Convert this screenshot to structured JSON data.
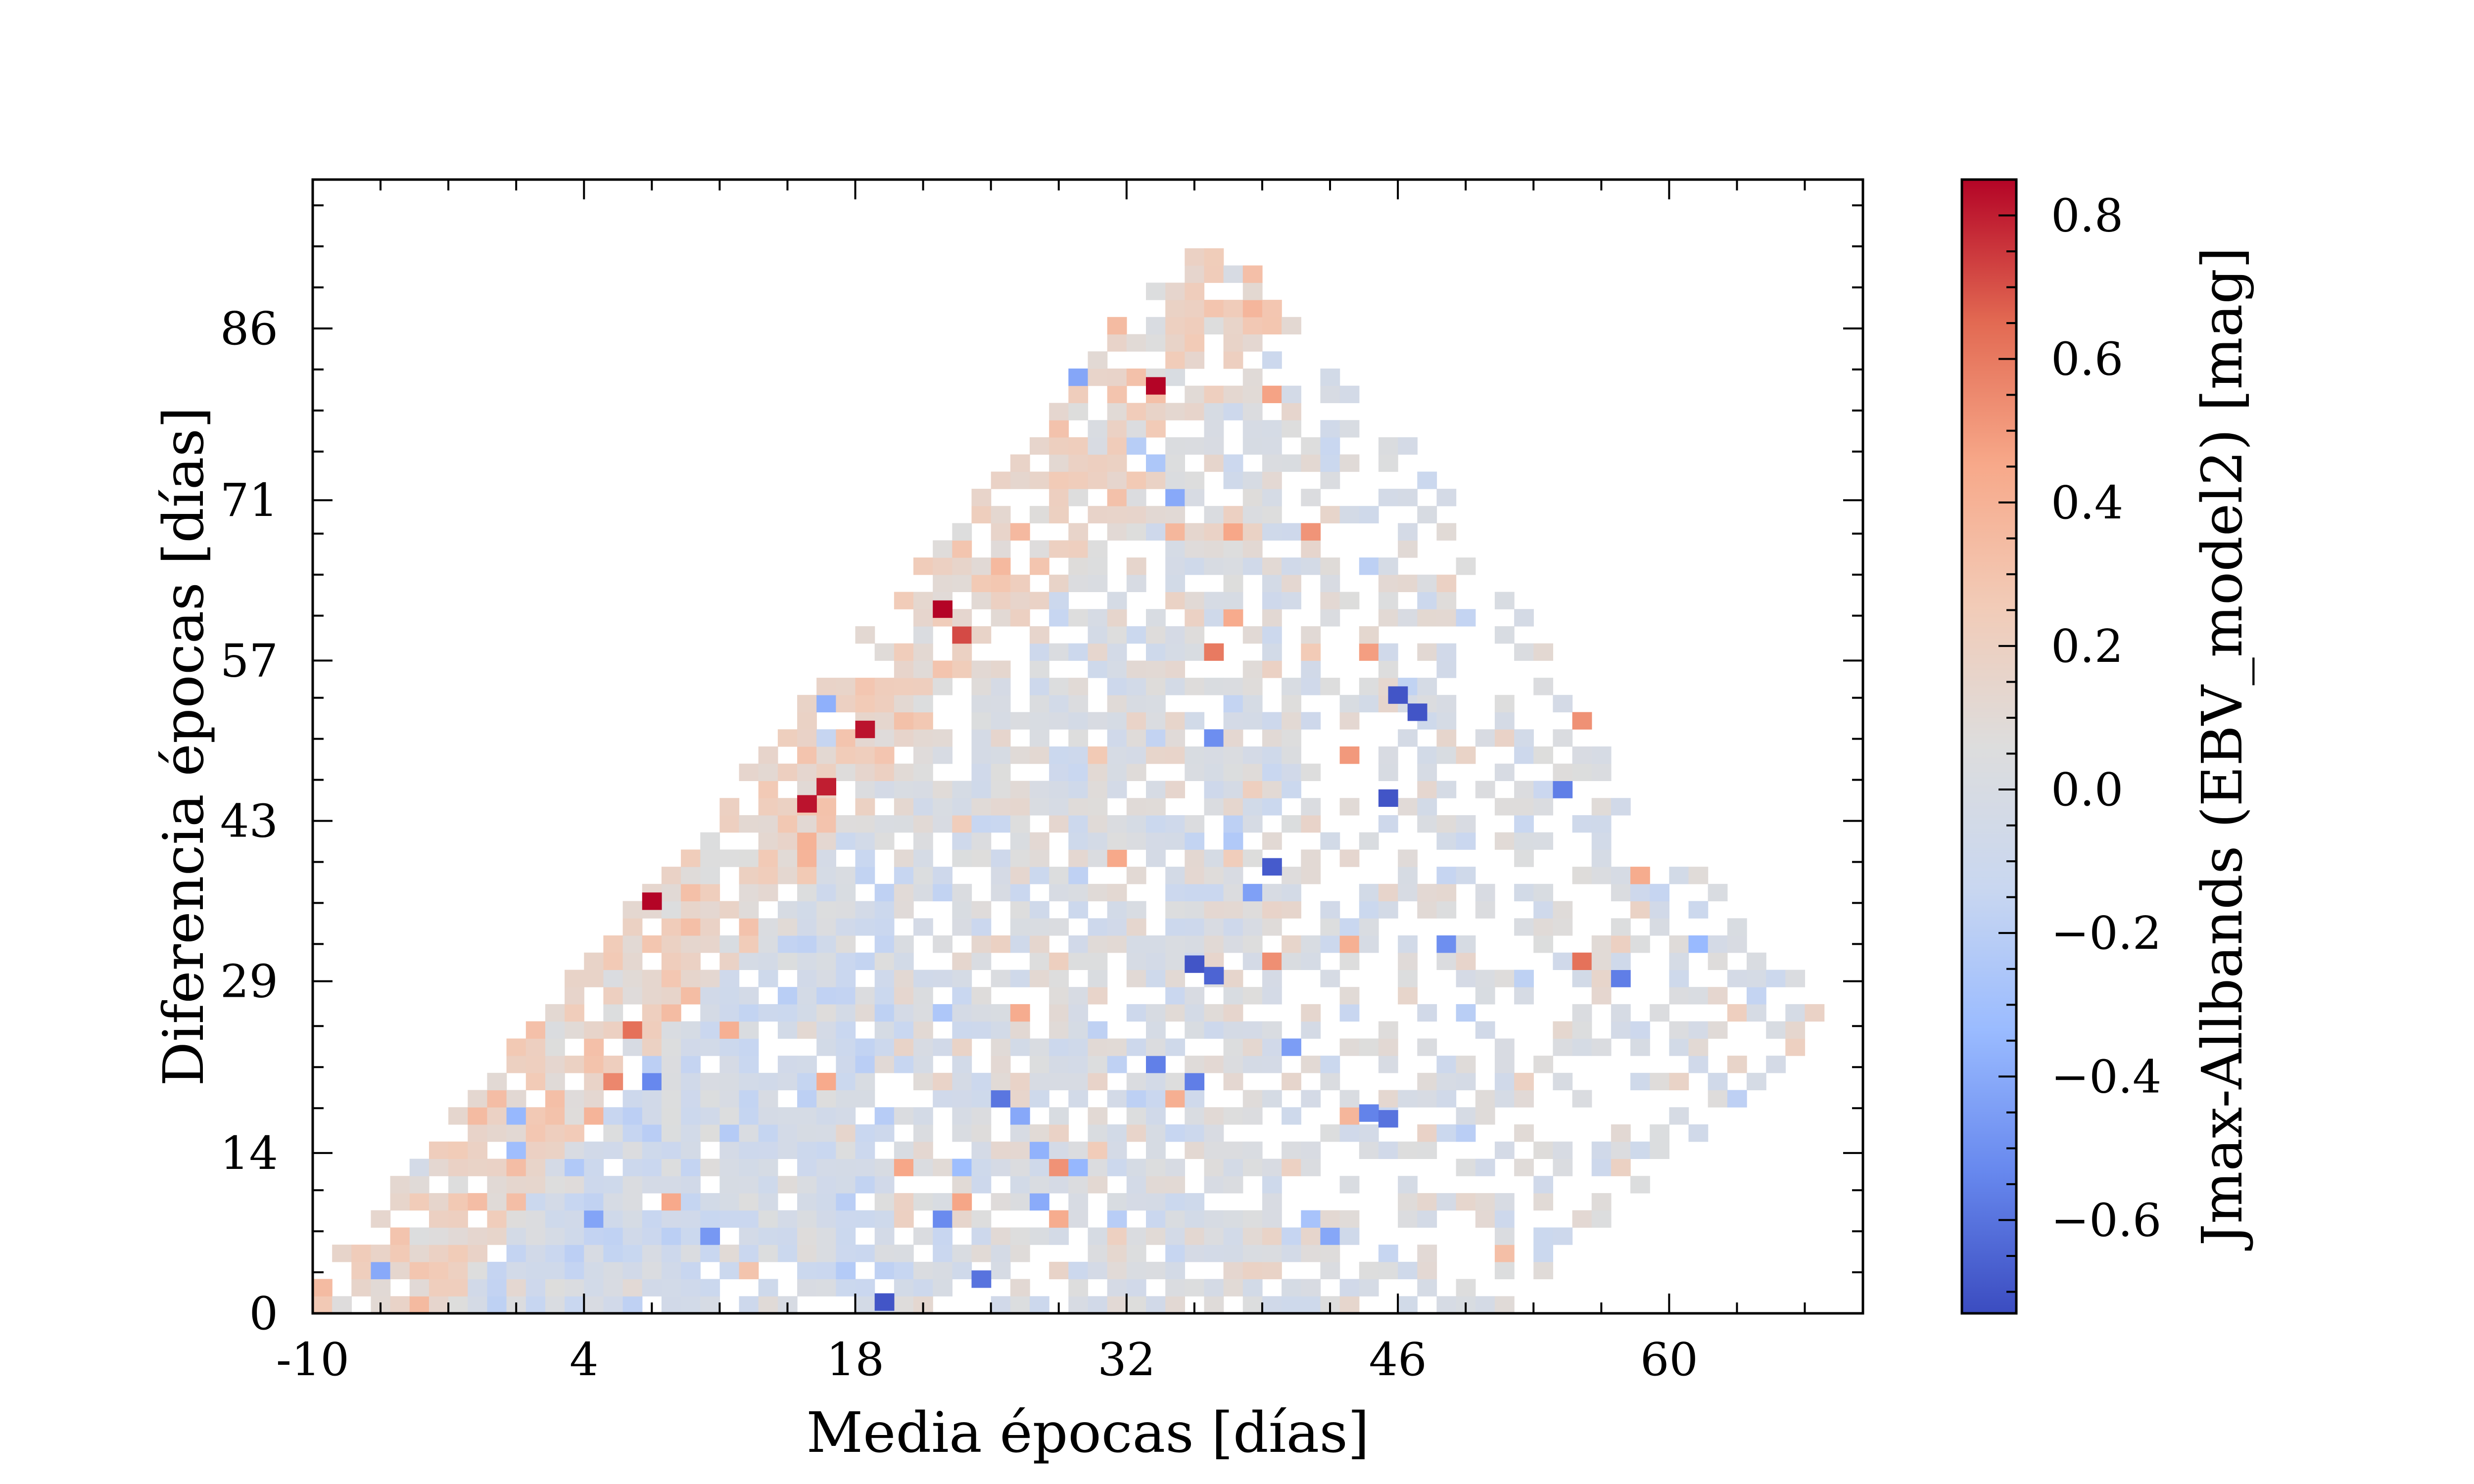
{
  "chart_data": {
    "type": "heatmap",
    "xlabel": "Media épocas [días]",
    "ylabel": "Diferencia épocas [días]",
    "xlim": [
      -10,
      70
    ],
    "ylim": [
      0,
      99
    ],
    "x_ticks": [
      -10,
      4,
      18,
      32,
      46,
      60
    ],
    "y_ticks": [
      0,
      14,
      29,
      43,
      57,
      71,
      86
    ],
    "cell_width": 1,
    "cell_height": 1.5,
    "colorbar": {
      "label": "Jmax-Allbands (EBV_model2) [mag]",
      "range": [
        -0.73,
        0.85
      ],
      "ticks": [
        -0.6,
        -0.4,
        -0.2,
        0.0,
        0.2,
        0.4,
        0.6,
        0.8
      ],
      "tick_labels": [
        "−0.6",
        "−0.4",
        "−0.2",
        "0.0",
        "0.2",
        "0.4",
        "0.6",
        "0.8"
      ],
      "colormap": "coolwarm",
      "colormap_stops": [
        "#3b4cc0",
        "#6788ee",
        "#9abbff",
        "#c9d7f0",
        "#dddddd",
        "#f2cbb7",
        "#f7a889",
        "#e26952",
        "#b40426"
      ]
    },
    "grid": false,
    "region_description": "Triangular coverage: diff ≤ ~2×(mean+10); mean spans -10 to ~68; diff spans 0 to ~96",
    "highlighted_cells": [
      {
        "x": 33.5,
        "y": 81,
        "value": 0.85
      },
      {
        "x": 22.5,
        "y": 61.5,
        "value": 0.85
      },
      {
        "x": 18.5,
        "y": 51,
        "value": 0.82
      },
      {
        "x": 16.5,
        "y": 46,
        "value": 0.8
      },
      {
        "x": 15.5,
        "y": 44.5,
        "value": 0.82
      },
      {
        "x": 7.5,
        "y": 36,
        "value": 0.85
      },
      {
        "x": 47,
        "y": 52.5,
        "value": -0.7
      },
      {
        "x": 46,
        "y": 54,
        "value": -0.7
      },
      {
        "x": 45.5,
        "y": 45,
        "value": -0.7
      },
      {
        "x": 39.5,
        "y": 39,
        "value": -0.68
      },
      {
        "x": 35.5,
        "y": 30.5,
        "value": -0.7
      },
      {
        "x": 36.5,
        "y": 29.5,
        "value": -0.65
      },
      {
        "x": 44.5,
        "y": 17.5,
        "value": -0.55
      },
      {
        "x": 45.5,
        "y": 17,
        "value": -0.6
      },
      {
        "x": 24.5,
        "y": 3,
        "value": -0.6
      },
      {
        "x": 19.5,
        "y": 1,
        "value": -0.7
      }
    ]
  }
}
